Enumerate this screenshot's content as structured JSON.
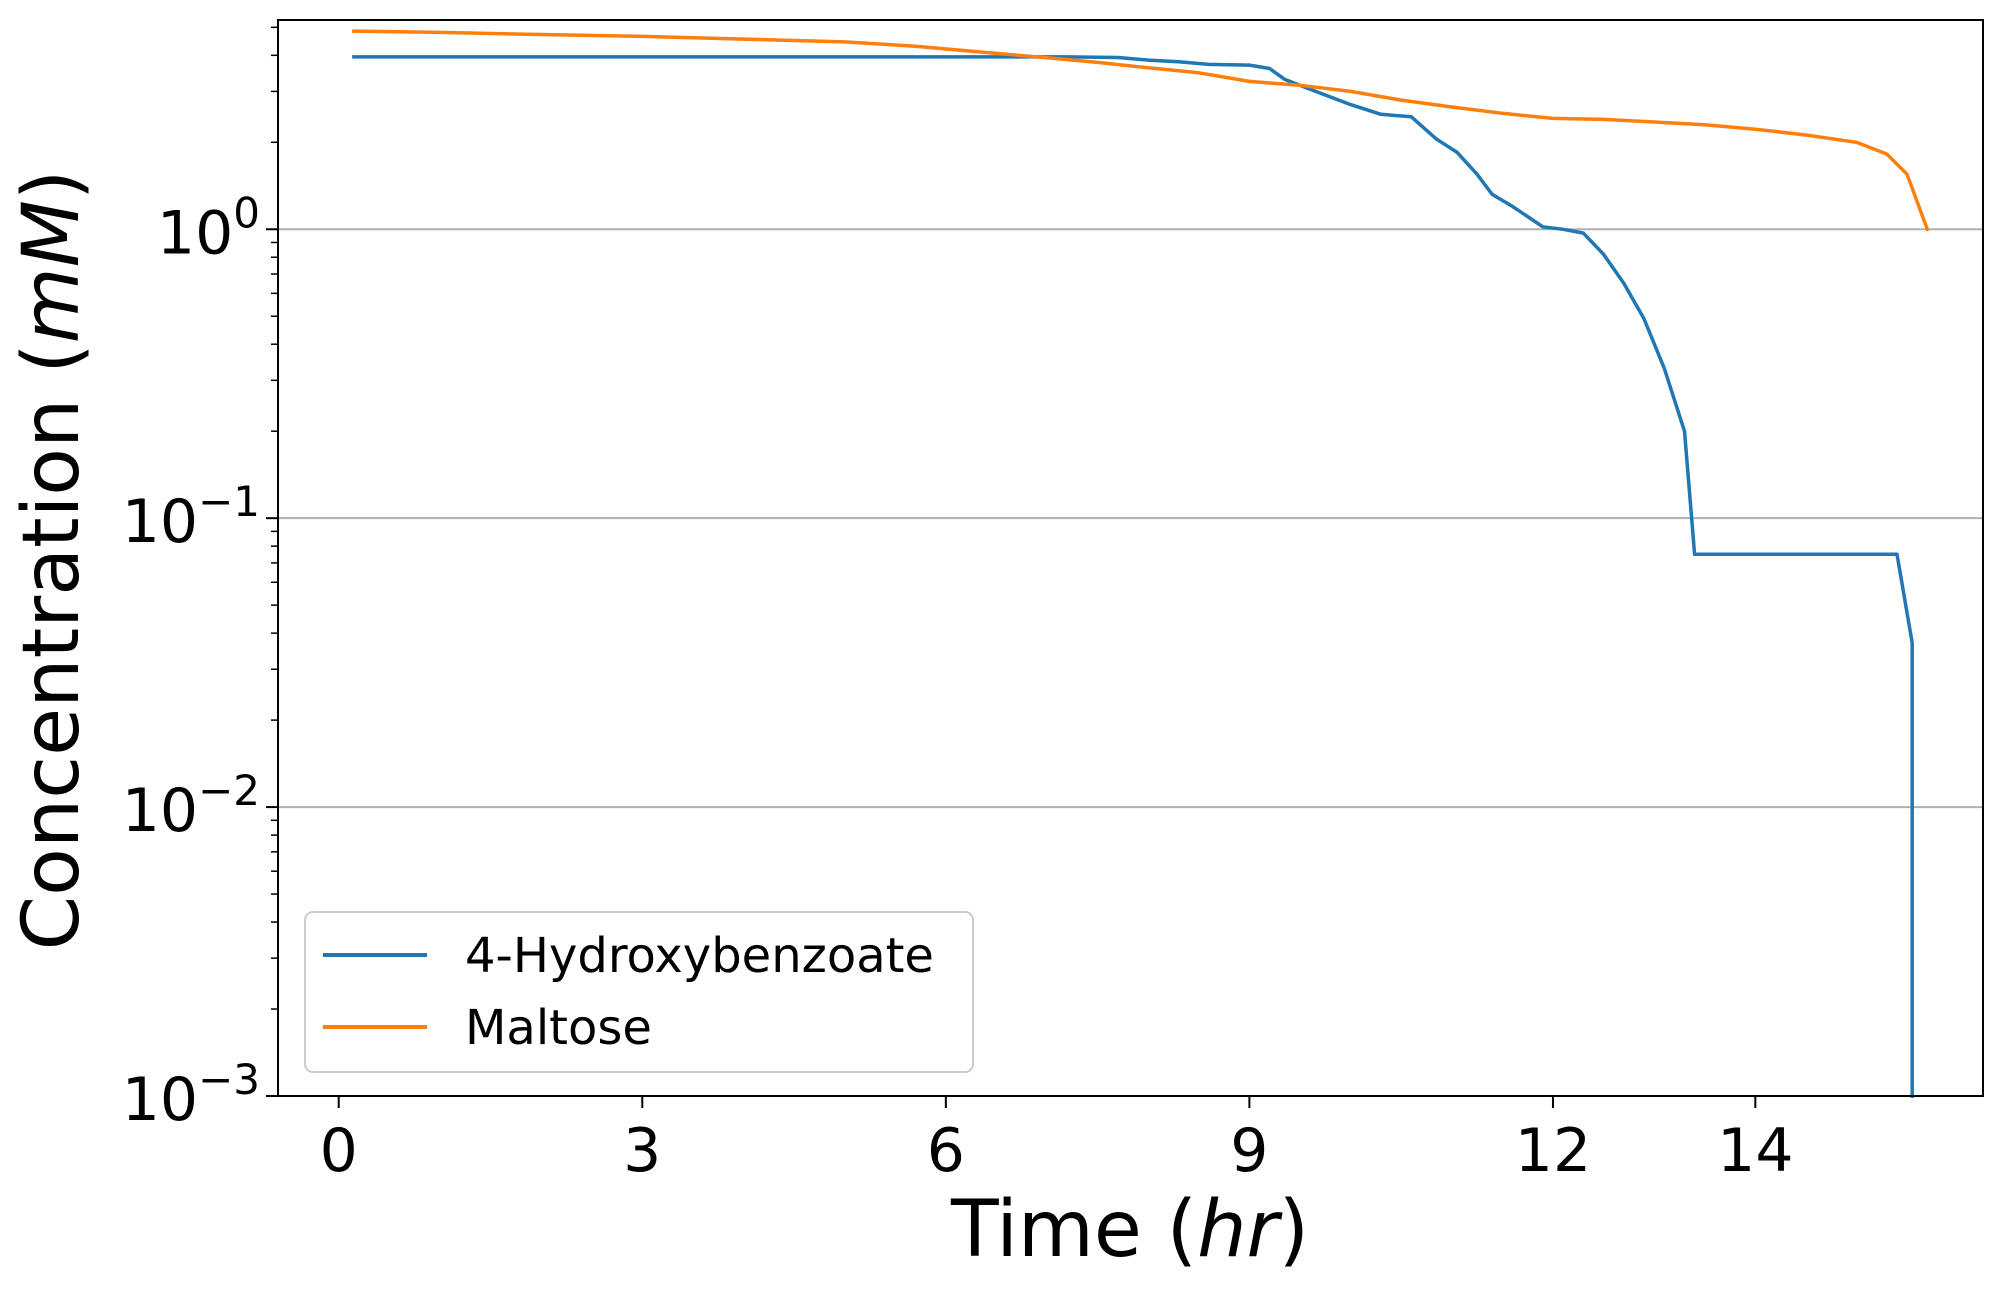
{
  "chart_data": {
    "type": "line",
    "xlabel": {
      "prefix": "Time (",
      "italic": "hr",
      "suffix": ")"
    },
    "ylabel": {
      "prefix": "Concentration (",
      "italic": "mM",
      "suffix": ")"
    },
    "x_ticks": [
      {
        "value": 0,
        "label": "0"
      },
      {
        "value": 3,
        "label": "3"
      },
      {
        "value": 6,
        "label": "6"
      },
      {
        "value": 9,
        "label": "9"
      },
      {
        "value": 12,
        "label": "12"
      },
      {
        "value": 14,
        "label": "14"
      }
    ],
    "y_ticks": [
      {
        "value": 0.001,
        "base": "10",
        "exp": "−3"
      },
      {
        "value": 0.01,
        "base": "10",
        "exp": "−2"
      },
      {
        "value": 0.1,
        "base": "10",
        "exp": "−1"
      },
      {
        "value": 1,
        "base": "10",
        "exp": "0"
      }
    ],
    "xlim": [
      -0.6,
      16.25
    ],
    "ylim": [
      0.001,
      5.3
    ],
    "y_scale": "log",
    "grid": "horizontal",
    "legend_position": "lower-left",
    "series": [
      {
        "name": "4-Hydroxybenzoate",
        "color": "#1f77b4",
        "points": [
          [
            0.15,
            3.95
          ],
          [
            3,
            3.95
          ],
          [
            6,
            3.95
          ],
          [
            7.2,
            3.95
          ],
          [
            7.7,
            3.93
          ],
          [
            8,
            3.85
          ],
          [
            8.3,
            3.8
          ],
          [
            8.6,
            3.72
          ],
          [
            9,
            3.7
          ],
          [
            9.2,
            3.6
          ],
          [
            9.35,
            3.3
          ],
          [
            9.6,
            3.05
          ],
          [
            10,
            2.7
          ],
          [
            10.3,
            2.5
          ],
          [
            10.6,
            2.45
          ],
          [
            10.85,
            2.05
          ],
          [
            11.05,
            1.85
          ],
          [
            11.25,
            1.55
          ],
          [
            11.4,
            1.32
          ],
          [
            11.6,
            1.2
          ],
          [
            11.9,
            1.02
          ],
          [
            12.1,
            1.0
          ],
          [
            12.3,
            0.97
          ],
          [
            12.5,
            0.82
          ],
          [
            12.7,
            0.65
          ],
          [
            12.9,
            0.49
          ],
          [
            13.1,
            0.33
          ],
          [
            13.3,
            0.2
          ],
          [
            13.4,
            0.075
          ],
          [
            15.4,
            0.075
          ],
          [
            15.55,
            0.037
          ],
          [
            15.55,
            0.00098
          ]
        ]
      },
      {
        "name": "Maltose",
        "color": "#ff7f0e",
        "points": [
          [
            0.15,
            4.85
          ],
          [
            1,
            4.8
          ],
          [
            2,
            4.72
          ],
          [
            3,
            4.65
          ],
          [
            4,
            4.55
          ],
          [
            5,
            4.45
          ],
          [
            5.7,
            4.3
          ],
          [
            6.3,
            4.12
          ],
          [
            7,
            3.92
          ],
          [
            7.5,
            3.78
          ],
          [
            8,
            3.62
          ],
          [
            8.5,
            3.48
          ],
          [
            9,
            3.25
          ],
          [
            9.5,
            3.15
          ],
          [
            10,
            3.0
          ],
          [
            10.5,
            2.8
          ],
          [
            11,
            2.65
          ],
          [
            11.5,
            2.52
          ],
          [
            12,
            2.42
          ],
          [
            12.5,
            2.4
          ],
          [
            13,
            2.35
          ],
          [
            13.5,
            2.3
          ],
          [
            14,
            2.22
          ],
          [
            14.5,
            2.12
          ],
          [
            15,
            2.0
          ],
          [
            15.3,
            1.82
          ],
          [
            15.5,
            1.55
          ],
          [
            15.7,
            1.0
          ]
        ]
      }
    ]
  }
}
